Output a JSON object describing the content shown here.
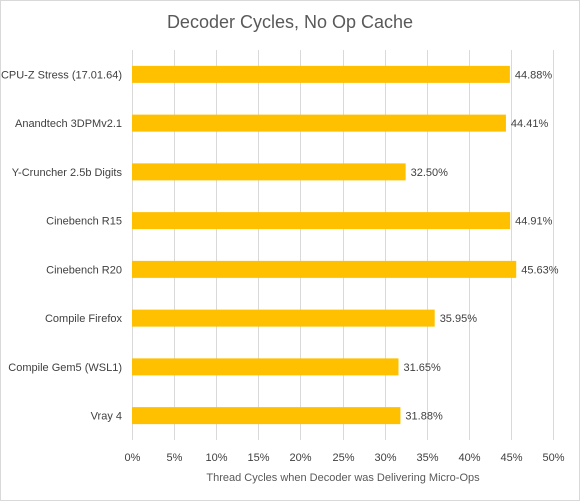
{
  "chart_data": {
    "type": "bar",
    "orientation": "horizontal",
    "title": "Decoder Cycles, No Op Cache",
    "xlabel": "Thread Cycles when Decoder was Delivering Micro-Ops",
    "ylabel": "",
    "categories": [
      "CPU-Z Stress (17.01.64)",
      "Anandtech 3DPMv2.1",
      "Y-Cruncher 2.5b Digits",
      "Cinebench R15",
      "Cinebench R20",
      "Compile Firefox",
      "Compile Gem5 (WSL1)",
      "Vray 4"
    ],
    "values": [
      44.88,
      44.41,
      32.5,
      44.91,
      45.63,
      35.95,
      31.65,
      31.88
    ],
    "value_labels": [
      "44.88%",
      "44.41%",
      "32.50%",
      "44.91%",
      "45.63%",
      "35.95%",
      "31.65%",
      "31.88%"
    ],
    "xlim": [
      0,
      50
    ],
    "x_ticks": [
      "0%",
      "5%",
      "10%",
      "15%",
      "20%",
      "25%",
      "30%",
      "35%",
      "40%",
      "45%",
      "50%"
    ],
    "grid": true,
    "bar_color": "#FFC000",
    "grid_color": "#D9D9D9"
  }
}
